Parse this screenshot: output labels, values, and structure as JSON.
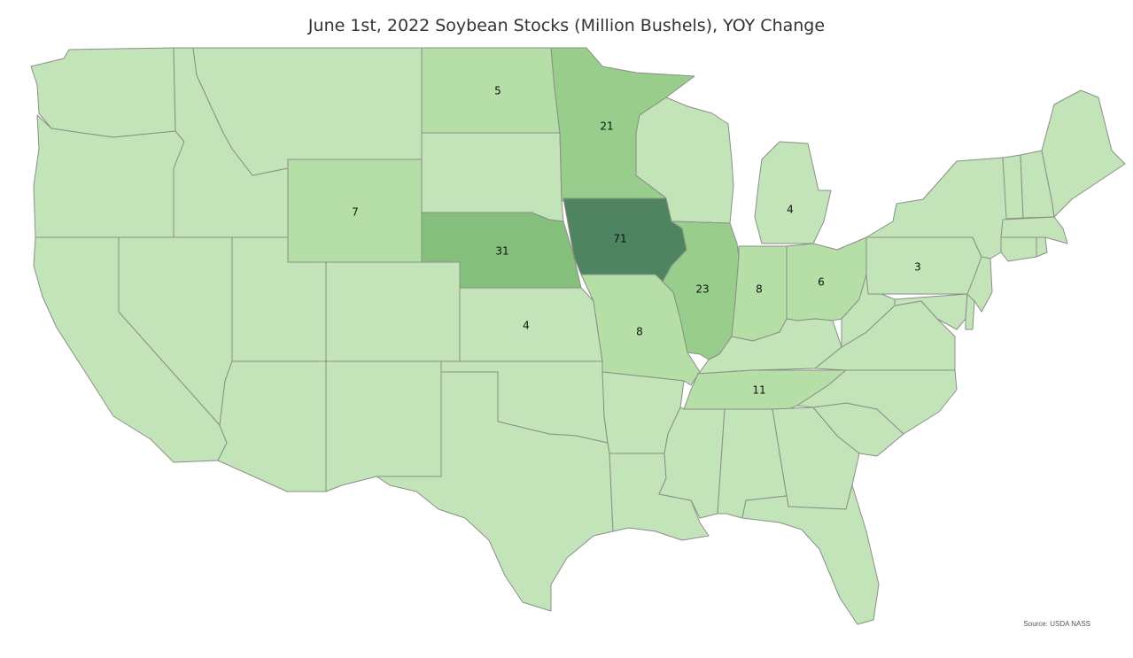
{
  "title": "June 1st, 2022 Soybean Stocks (Million Bushels), YOY Change",
  "source": "Source: USDA NASS",
  "colors": {
    "base": "#c3e4b8",
    "light": "#b5dfa6",
    "mid": "#98cd8b",
    "midDark": "#85bf7c",
    "dark": "#4f8460",
    "border": "#8a8f88"
  },
  "states": [
    {
      "name": "Washington",
      "value": null,
      "shade": "base"
    },
    {
      "name": "Oregon",
      "value": null,
      "shade": "base"
    },
    {
      "name": "California",
      "value": null,
      "shade": "base"
    },
    {
      "name": "Idaho",
      "value": null,
      "shade": "base"
    },
    {
      "name": "Nevada",
      "value": null,
      "shade": "base"
    },
    {
      "name": "Utah",
      "value": null,
      "shade": "base"
    },
    {
      "name": "Arizona",
      "value": null,
      "shade": "base"
    },
    {
      "name": "Montana",
      "value": null,
      "shade": "base"
    },
    {
      "name": "Wyoming",
      "value": "7",
      "shade": "light"
    },
    {
      "name": "Colorado",
      "value": null,
      "shade": "base"
    },
    {
      "name": "New Mexico",
      "value": null,
      "shade": "base"
    },
    {
      "name": "North Dakota",
      "value": "5",
      "shade": "light"
    },
    {
      "name": "South Dakota",
      "value": null,
      "shade": "base"
    },
    {
      "name": "Nebraska",
      "value": "31",
      "shade": "midDark"
    },
    {
      "name": "Kansas",
      "value": "4",
      "shade": "base"
    },
    {
      "name": "Oklahoma",
      "value": null,
      "shade": "base"
    },
    {
      "name": "Texas",
      "value": null,
      "shade": "base"
    },
    {
      "name": "Minnesota",
      "value": "21",
      "shade": "mid"
    },
    {
      "name": "Iowa",
      "value": "71",
      "shade": "dark"
    },
    {
      "name": "Missouri",
      "value": "8",
      "shade": "light"
    },
    {
      "name": "Arkansas",
      "value": null,
      "shade": "base"
    },
    {
      "name": "Louisiana",
      "value": null,
      "shade": "base"
    },
    {
      "name": "Wisconsin",
      "value": null,
      "shade": "base"
    },
    {
      "name": "Illinois",
      "value": "23",
      "shade": "mid"
    },
    {
      "name": "Michigan",
      "value": "4",
      "shade": "base"
    },
    {
      "name": "Indiana",
      "value": "8",
      "shade": "light"
    },
    {
      "name": "Ohio",
      "value": "6",
      "shade": "light"
    },
    {
      "name": "Kentucky",
      "value": null,
      "shade": "base"
    },
    {
      "name": "Tennessee",
      "value": "11",
      "shade": "light"
    },
    {
      "name": "Mississippi",
      "value": null,
      "shade": "base"
    },
    {
      "name": "Alabama",
      "value": null,
      "shade": "base"
    },
    {
      "name": "Georgia",
      "value": null,
      "shade": "base"
    },
    {
      "name": "Florida",
      "value": null,
      "shade": "base"
    },
    {
      "name": "South Carolina",
      "value": null,
      "shade": "base"
    },
    {
      "name": "North Carolina",
      "value": null,
      "shade": "base"
    },
    {
      "name": "Virginia",
      "value": null,
      "shade": "base"
    },
    {
      "name": "West Virginia",
      "value": null,
      "shade": "base"
    },
    {
      "name": "Pennsylvania",
      "value": "3",
      "shade": "base"
    },
    {
      "name": "New York",
      "value": null,
      "shade": "base"
    },
    {
      "name": "Maryland",
      "value": null,
      "shade": "base"
    },
    {
      "name": "Delaware",
      "value": null,
      "shade": "base"
    },
    {
      "name": "New Jersey",
      "value": null,
      "shade": "base"
    },
    {
      "name": "Connecticut",
      "value": null,
      "shade": "base"
    },
    {
      "name": "Rhode Island",
      "value": null,
      "shade": "base"
    },
    {
      "name": "Massachusetts",
      "value": null,
      "shade": "base"
    },
    {
      "name": "Vermont",
      "value": null,
      "shade": "base"
    },
    {
      "name": "New Hampshire",
      "value": null,
      "shade": "base"
    },
    {
      "name": "Maine",
      "value": null,
      "shade": "base"
    }
  ]
}
